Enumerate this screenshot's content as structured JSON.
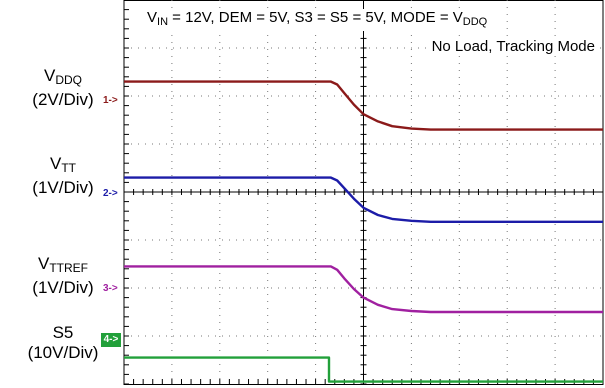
{
  "title_lines": {
    "line1": {
      "parts": [
        {
          "t": "V",
          "sub": false
        },
        {
          "t": "IN",
          "sub": true
        },
        {
          "t": " = 12V, DEM = 5V, S3 = S5 = 5V, MODE = V",
          "sub": false
        },
        {
          "t": "DDQ",
          "sub": true
        }
      ]
    },
    "line2": "No Load, Tracking Mode"
  },
  "channels": [
    {
      "id": "vddq",
      "name_main": "V",
      "name_sub": "DDQ",
      "scale": "(2V/Div)",
      "marker": "1->",
      "color": "#8b1a1a"
    },
    {
      "id": "vtt",
      "name_main": "V",
      "name_sub": "TT",
      "scale": "(1V/Div)",
      "marker": "2->",
      "color": "#1c1ca8"
    },
    {
      "id": "vttref",
      "name_main": "V",
      "name_sub": "TTREF",
      "scale": "(1V/Div)",
      "marker": "3->",
      "color": "#a020a0"
    },
    {
      "id": "s5",
      "name_main": "S5",
      "name_sub": "",
      "scale": "(10V/Div)",
      "marker": "4->",
      "color": "#22a03a"
    }
  ],
  "chart_data": {
    "type": "line",
    "title": "VIN = 12V, DEM = 5V, S3 = S5 = 5V, MODE = VDDQ No Load, Tracking Mode",
    "grid": true,
    "x_divisions": 10,
    "y_divisions": 8,
    "x_unit": "div",
    "y_unit": "div",
    "series": [
      {
        "name": "VDDQ",
        "x": [
          0,
          4.32,
          4.45,
          4.6,
          4.8,
          5.0,
          5.3,
          5.6,
          6.0,
          6.4,
          10
        ],
        "y": [
          6.3,
          6.3,
          6.24,
          6.06,
          5.82,
          5.62,
          5.47,
          5.37,
          5.32,
          5.3,
          5.3
        ]
      },
      {
        "name": "VTT",
        "x": [
          0,
          4.32,
          4.45,
          4.6,
          4.8,
          5.0,
          5.3,
          5.6,
          6.0,
          6.4,
          10
        ],
        "y": [
          4.3,
          4.3,
          4.24,
          4.08,
          3.86,
          3.67,
          3.52,
          3.44,
          3.4,
          3.38,
          3.38
        ]
      },
      {
        "name": "VTTREF",
        "x": [
          0,
          4.32,
          4.45,
          4.6,
          4.8,
          5.0,
          5.3,
          5.6,
          6.0,
          6.4,
          10
        ],
        "y": [
          2.45,
          2.45,
          2.38,
          2.2,
          1.98,
          1.8,
          1.65,
          1.56,
          1.52,
          1.5,
          1.5
        ]
      },
      {
        "name": "S5",
        "x": [
          0,
          4.28,
          4.28,
          10
        ],
        "y": [
          0.55,
          0.55,
          0.05,
          0.05
        ]
      }
    ]
  }
}
